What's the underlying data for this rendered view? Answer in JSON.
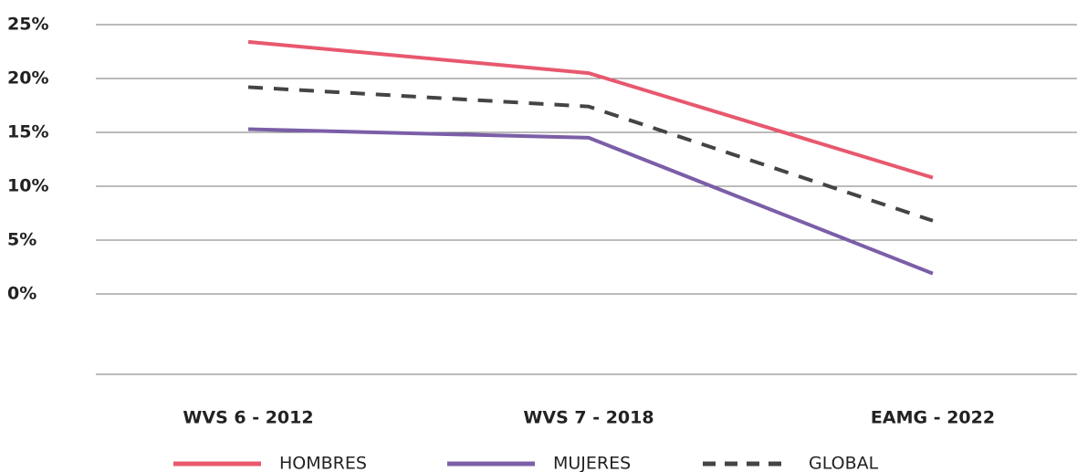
{
  "chart_data": {
    "type": "line",
    "categories": [
      "WVS 6 - 2012",
      "WVS 7 - 2018",
      "EAMG - 2022"
    ],
    "series": [
      {
        "name": "HOMBRES",
        "color": "#e8586e",
        "values": [
          23.4,
          20.5,
          10.8
        ]
      },
      {
        "name": "MUJERES",
        "color": "#7b5ea7",
        "values": [
          15.3,
          14.5,
          1.9
        ]
      },
      {
        "name": "GLOBAL",
        "color": "#444444",
        "dashed": true,
        "values": [
          19.2,
          17.4,
          6.8
        ]
      }
    ],
    "ylim": [
      0,
      25
    ],
    "yticks": [
      {
        "value": 0,
        "label": "0%"
      },
      {
        "value": 5,
        "label": "5%"
      },
      {
        "value": 10,
        "label": "10%"
      },
      {
        "value": 15,
        "label": "15%"
      },
      {
        "value": 20,
        "label": "20%"
      },
      {
        "value": 25,
        "label": "25%"
      }
    ],
    "grid": true
  }
}
